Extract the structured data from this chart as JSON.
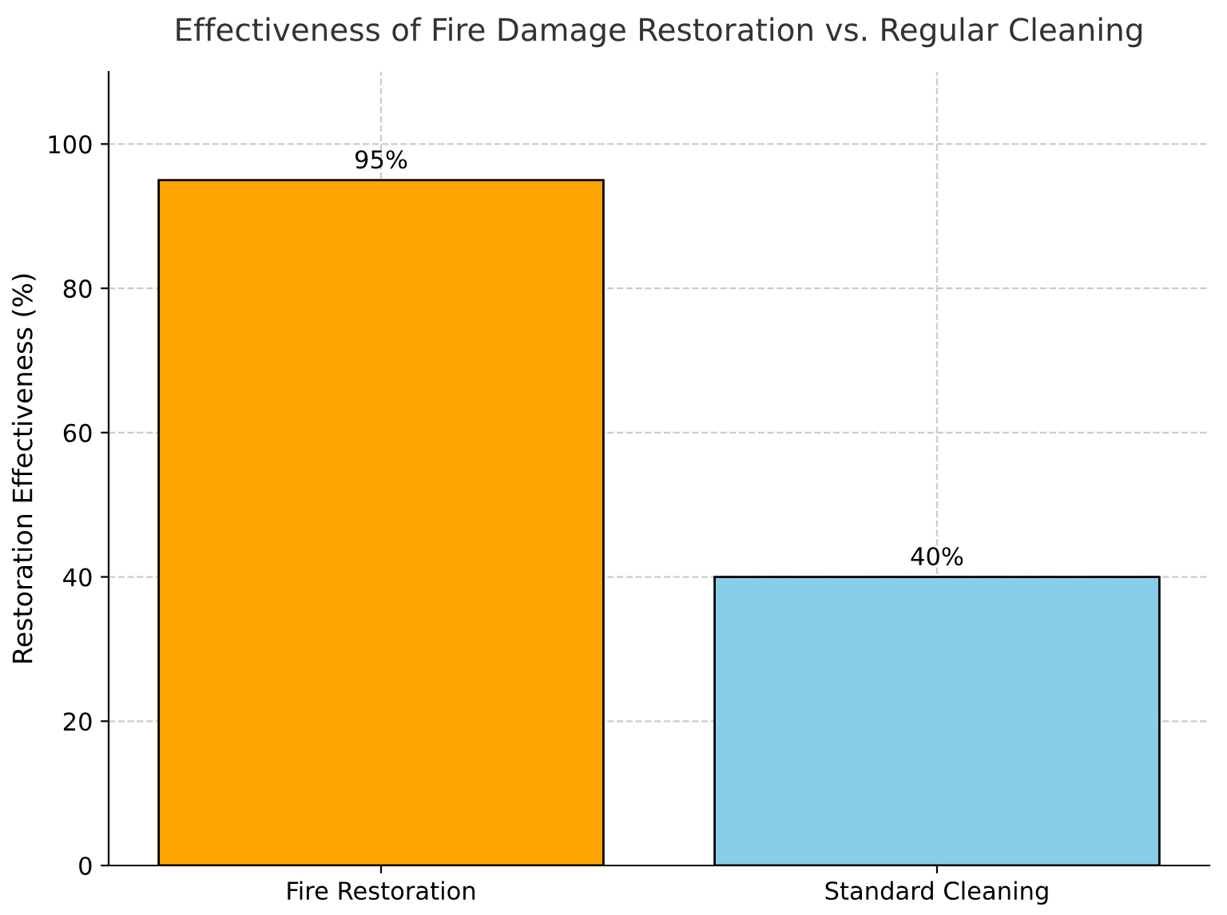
{
  "chart_data": {
    "type": "bar",
    "title": "Effectiveness of Fire Damage Restoration vs. Regular Cleaning",
    "ylabel": "Restoration Effectiveness (%)",
    "categories": [
      "Fire Restoration",
      "Standard Cleaning"
    ],
    "values": [
      95,
      40
    ],
    "colors": [
      "#ffa500",
      "#87ceeb"
    ],
    "value_labels": [
      "95%",
      "40%"
    ],
    "ylim": [
      0,
      110
    ],
    "yticks": [
      0,
      20,
      40,
      60,
      80,
      100
    ],
    "grid": true
  }
}
